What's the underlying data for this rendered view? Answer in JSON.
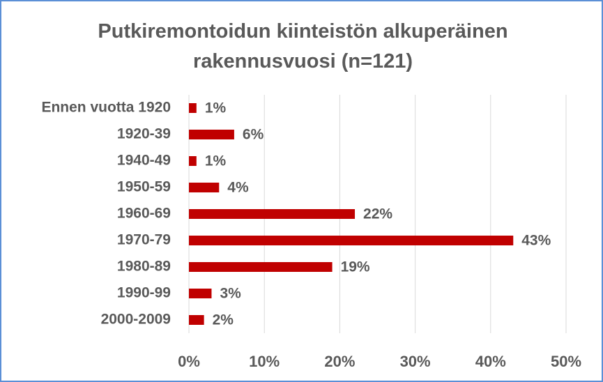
{
  "chart_data": {
    "type": "bar",
    "orientation": "horizontal",
    "title": "Putkiremontoidun kiinteistön alkuperäinen rakennusvuosi (n=121)",
    "categories": [
      "Ennen vuotta 1920",
      "1920-39",
      "1940-49",
      "1950-59",
      "1960-69",
      "1970-79",
      "1980-89",
      "1990-99",
      "2000-2009"
    ],
    "values": [
      1,
      6,
      1,
      4,
      22,
      43,
      19,
      3,
      2
    ],
    "value_labels": [
      "1%",
      "6%",
      "1%",
      "4%",
      "22%",
      "43%",
      "19%",
      "3%",
      "2%"
    ],
    "color": "#c00000",
    "xlim": [
      0,
      50
    ],
    "xticks": [
      {
        "value": 0,
        "label": "0%"
      },
      {
        "value": 10,
        "label": "10%"
      },
      {
        "value": 20,
        "label": "20%"
      },
      {
        "value": 30,
        "label": "30%"
      },
      {
        "value": 40,
        "label": "40%"
      },
      {
        "value": 50,
        "label": "50%"
      }
    ],
    "grid": true
  }
}
